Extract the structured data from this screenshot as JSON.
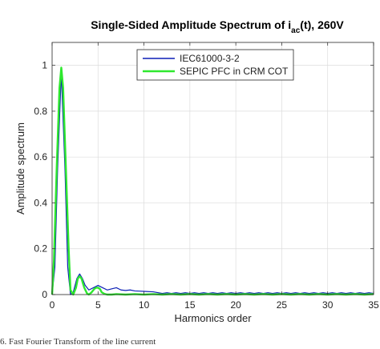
{
  "caption": "6. Fast Fourier Transform of the line current",
  "chart_data": {
    "type": "line",
    "title": {
      "prefix": "Single-Sided Amplitude Spectrum of i",
      "subscript": "ac",
      "suffix": "(t), 260V"
    },
    "xlabel": "Harmonics order",
    "ylabel": "Amplitude spectrum",
    "xlim": [
      0,
      35
    ],
    "ylim": [
      0,
      1.1
    ],
    "xticks": [
      0,
      5,
      10,
      15,
      20,
      25,
      30,
      35
    ],
    "yticks": [
      0,
      0.2,
      0.4,
      0.6,
      0.8,
      1
    ],
    "grid": true,
    "legend_position": "top-center",
    "series": [
      {
        "name": "IEC61000-3-2",
        "color": "#0b1fb5",
        "x": [
          0,
          0.3,
          0.6,
          1,
          1.4,
          1.7,
          2,
          2.3,
          2.5,
          2.7,
          3,
          3.3,
          3.6,
          4,
          4.5,
          5,
          5.5,
          6,
          6.5,
          7,
          7.5,
          8,
          8.5,
          9,
          9.5,
          10,
          11,
          12,
          12.5,
          13,
          13.5,
          14,
          14.5,
          15,
          15.5,
          16,
          16.5,
          17,
          17.5,
          18,
          18.5,
          19,
          19.5,
          20,
          20.5,
          21,
          21.5,
          22,
          22.5,
          23,
          23.5,
          24,
          24.5,
          25,
          25.5,
          26,
          26.5,
          27,
          27.5,
          28,
          28.5,
          29,
          29.5,
          30,
          30.5,
          31,
          31.5,
          32,
          32.5,
          33,
          33.5,
          34,
          34.5,
          35
        ],
        "y": [
          0,
          0.12,
          0.55,
          0.97,
          0.55,
          0.12,
          0,
          0.01,
          0.04,
          0.07,
          0.09,
          0.07,
          0.04,
          0.02,
          0.03,
          0.04,
          0.03,
          0.02,
          0.025,
          0.03,
          0.02,
          0.018,
          0.02,
          0.016,
          0.015,
          0.014,
          0.012,
          0.005,
          0.008,
          0.005,
          0.008,
          0.005,
          0.008,
          0.005,
          0.008,
          0.005,
          0.008,
          0.005,
          0.008,
          0.005,
          0.008,
          0.005,
          0.008,
          0.005,
          0.008,
          0.005,
          0.008,
          0.005,
          0.008,
          0.005,
          0.008,
          0.005,
          0.008,
          0.005,
          0.008,
          0.005,
          0.008,
          0.005,
          0.008,
          0.005,
          0.008,
          0.005,
          0.008,
          0.005,
          0.008,
          0.005,
          0.008,
          0.005,
          0.008,
          0.005,
          0.008,
          0.005,
          0.008,
          0.005
        ]
      },
      {
        "name": "SEPIC PFC in CRM COT",
        "color": "#2ee82e",
        "x": [
          0,
          0.2,
          0.5,
          0.8,
          1,
          1.2,
          1.5,
          1.8,
          2,
          2.3,
          2.6,
          2.8,
          3,
          3.2,
          3.5,
          3.8,
          4,
          4.3,
          4.6,
          4.8,
          5,
          5.2,
          5.4,
          5.7,
          6,
          6.5,
          7,
          8,
          9,
          10,
          11,
          12,
          13,
          14,
          15,
          16,
          17,
          18,
          19,
          20,
          21,
          22,
          23,
          24,
          25,
          26,
          27,
          28,
          29,
          30,
          31,
          32,
          33,
          34,
          35
        ],
        "y": [
          0,
          0.15,
          0.55,
          0.9,
          0.99,
          0.9,
          0.55,
          0.2,
          0.02,
          0,
          0.03,
          0.07,
          0.08,
          0.07,
          0.03,
          0.005,
          0,
          0.01,
          0.025,
          0.03,
          0.03,
          0.025,
          0.01,
          0.003,
          0,
          0,
          0.002,
          0,
          0.002,
          0,
          0.002,
          0,
          0.002,
          0,
          0.002,
          0,
          0.002,
          0,
          0.002,
          0,
          0.002,
          0,
          0.002,
          0,
          0.002,
          0,
          0.002,
          0,
          0.002,
          0,
          0.002,
          0,
          0.002,
          0,
          0.002
        ]
      }
    ]
  }
}
